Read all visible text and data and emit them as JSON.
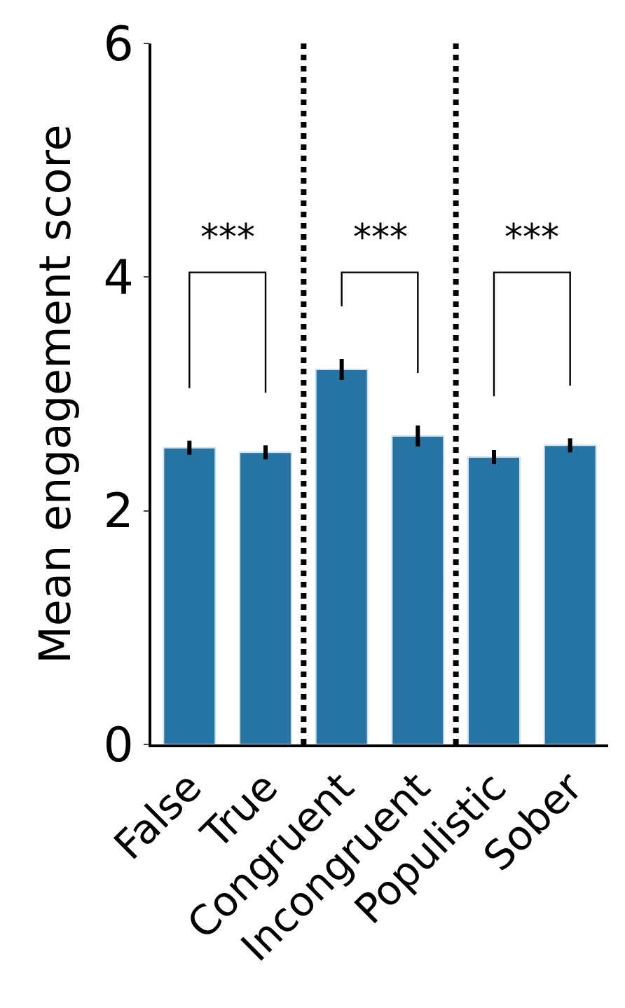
{
  "chart_data": {
    "type": "bar",
    "ylabel": "Mean engagement score",
    "categories": [
      "False",
      "True",
      "Congruent",
      "Incongruent",
      "Populistic",
      "Sober"
    ],
    "values": [
      2.54,
      2.5,
      3.21,
      2.64,
      2.46,
      2.56
    ],
    "errors": [
      0.06,
      0.06,
      0.09,
      0.09,
      0.06,
      0.06
    ],
    "color": "#2574a4",
    "ylim": [
      0,
      6
    ],
    "yticks": [
      0,
      2,
      4,
      6
    ],
    "annotations": [
      "***",
      "***",
      "***"
    ]
  }
}
